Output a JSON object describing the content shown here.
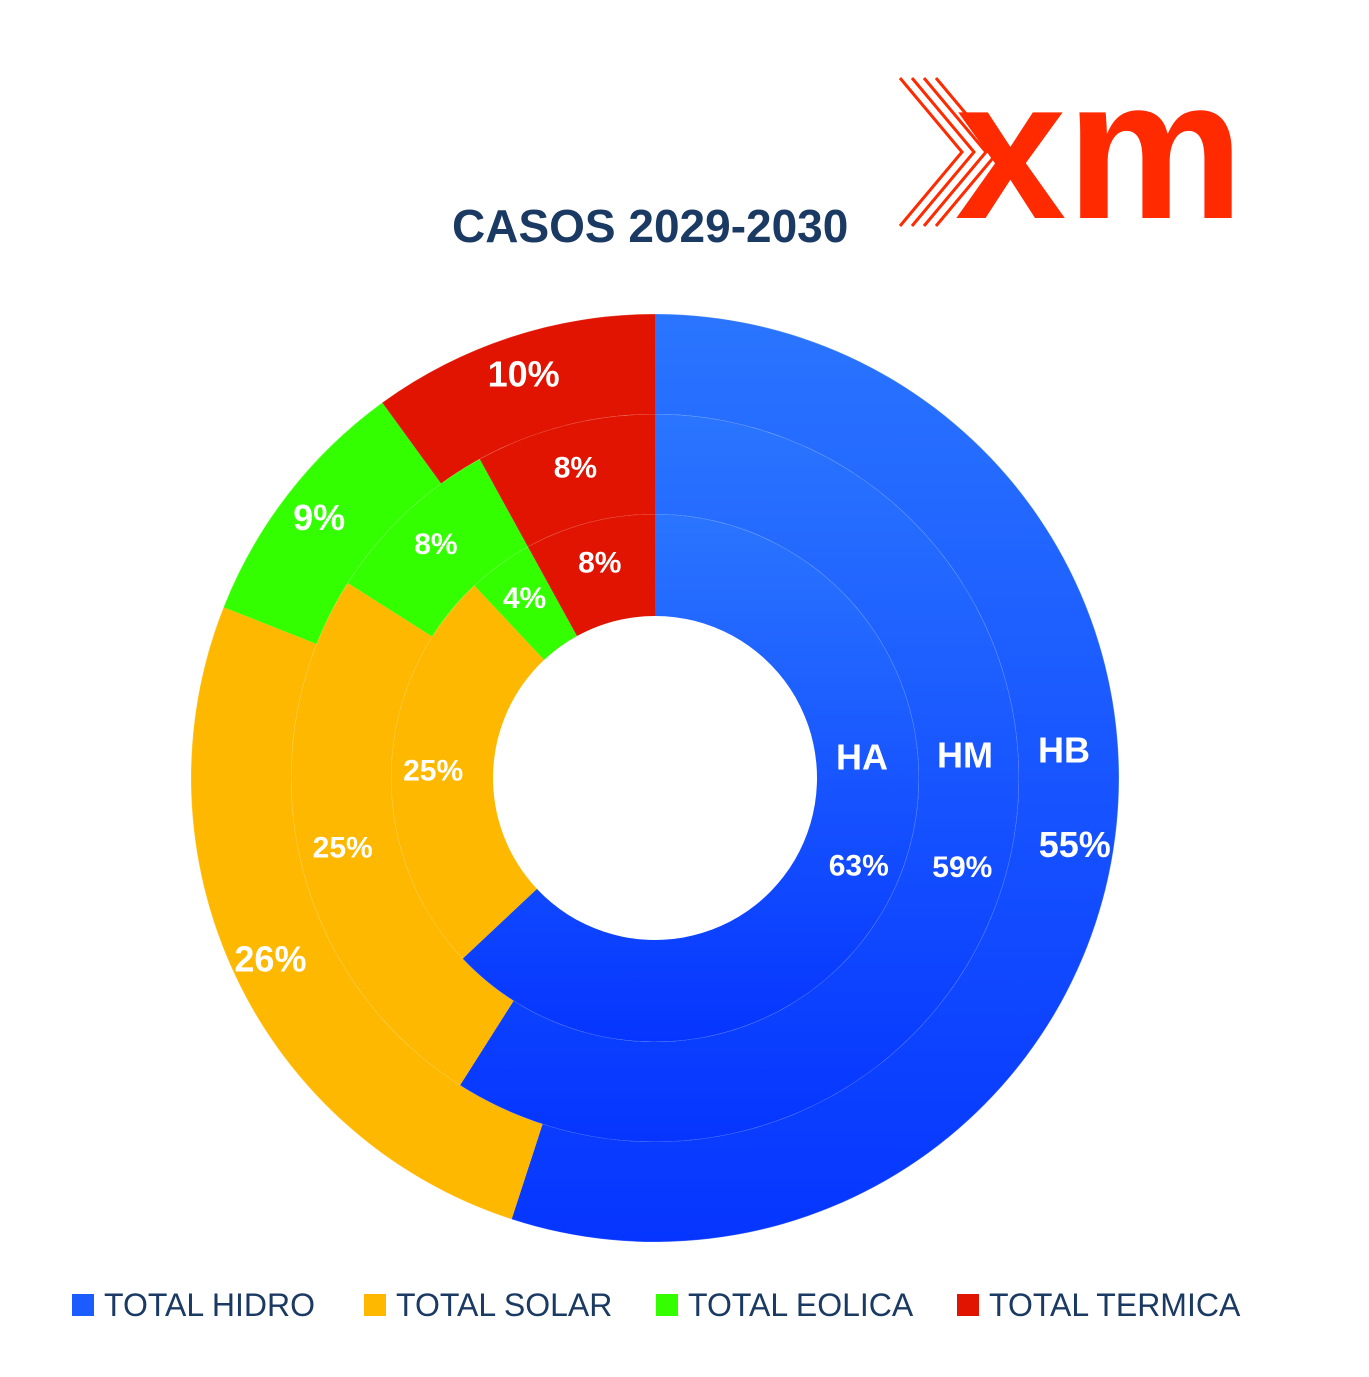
{
  "logo": {
    "text": "xm",
    "color": "#ff2a00"
  },
  "chart_data": {
    "type": "pie",
    "subtype": "multi-ring donut",
    "title": "CASOS 2029-2030",
    "categories": [
      "TOTAL HIDRO",
      "TOTAL SOLAR",
      "TOTAL EOLICA",
      "TOTAL TERMICA"
    ],
    "colors": [
      "#1a5cff",
      "#ffb800",
      "#33ff00",
      "#e01400"
    ],
    "rings": [
      {
        "name": "HA",
        "values": [
          63,
          25,
          4,
          8
        ],
        "labels": [
          "63%",
          "25%",
          "4%",
          "8%"
        ]
      },
      {
        "name": "HM",
        "values": [
          59,
          25,
          8,
          8
        ],
        "labels": [
          "59%",
          "25%",
          "8%",
          "8%"
        ]
      },
      {
        "name": "HB",
        "values": [
          55,
          26,
          9,
          10
        ],
        "labels": [
          "55%",
          "26%",
          "9%",
          "10%"
        ]
      }
    ],
    "legend": {
      "position": "bottom",
      "items": [
        "TOTAL HIDRO",
        "TOTAL SOLAR",
        "TOTAL EOLICA",
        "TOTAL TERMICA"
      ]
    }
  }
}
